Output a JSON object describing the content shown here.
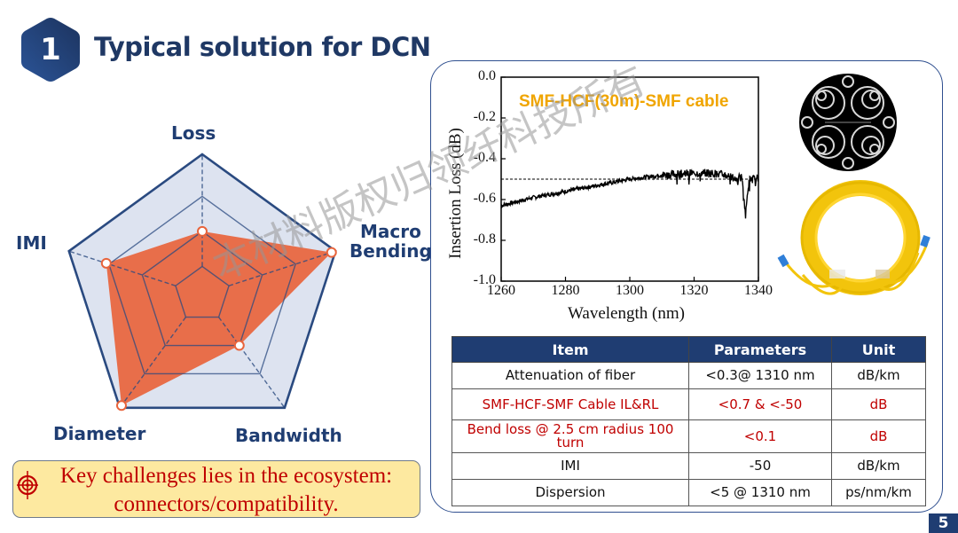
{
  "header": {
    "section_number": "1",
    "title": "Typical solution for DCN"
  },
  "radar": {
    "axes": [
      "Loss",
      "Macro Bending",
      "Bandwidth",
      "Diameter",
      "IMI"
    ],
    "labels": {
      "loss": "Loss",
      "macro_line1": "Macro",
      "macro_line2": "Bending",
      "bandwidth": "Bandwidth",
      "diameter": "Diameter",
      "imi": "IMI"
    },
    "ring_levels": [
      0.2,
      0.45,
      0.7,
      1.0
    ],
    "values": [
      0.45,
      0.97,
      0.45,
      0.98,
      0.72
    ],
    "colors": {
      "fill": "#e8643c",
      "grid": "#2a4a80",
      "background": "#dde3f0"
    }
  },
  "callout": {
    "icon": "target-icon",
    "line1": "Key challenges lies in the ecosystem:",
    "line2": "connectors/compatibility."
  },
  "chart_data": {
    "type": "line",
    "title": "SMF-HCF(30m)-SMF cable",
    "xlabel": "Wavelength (nm)",
    "ylabel": "Insertion Loss (dB)",
    "xlim": [
      1260,
      1340
    ],
    "ylim": [
      -1.0,
      0.0
    ],
    "x_ticks": [
      "1260",
      "1280",
      "1300",
      "1320",
      "1340"
    ],
    "y_ticks": [
      "0.0",
      "-0.2",
      "-0.4",
      "-0.6",
      "-0.8",
      "-1.0"
    ],
    "reference_line": -0.5,
    "series": [
      {
        "name": "Insertion Loss",
        "x": [
          1260,
          1265,
          1270,
          1275,
          1280,
          1285,
          1290,
          1295,
          1300,
          1305,
          1310,
          1315,
          1320,
          1325,
          1330,
          1333,
          1335,
          1336,
          1337,
          1340
        ],
        "y": [
          -0.63,
          -0.61,
          -0.59,
          -0.575,
          -0.56,
          -0.545,
          -0.53,
          -0.515,
          -0.5,
          -0.49,
          -0.48,
          -0.475,
          -0.47,
          -0.47,
          -0.48,
          -0.5,
          -0.49,
          -0.68,
          -0.5,
          -0.5
        ]
      }
    ],
    "grid": false,
    "legend": "none"
  },
  "images": {
    "fiber_cross_section": "hollow-core-fiber-cross-section",
    "cable": "yellow-fiber-cable-coil"
  },
  "table": {
    "headers": [
      "Item",
      "Parameters",
      "Unit"
    ],
    "rows": [
      {
        "item": "Attenuation of fiber",
        "param": "<0.3@ 1310 nm",
        "unit": "dB/km",
        "highlight": false
      },
      {
        "item": "SMF-HCF-SMF Cable IL&RL",
        "param": "<0.7 & <-50",
        "unit": "dB",
        "highlight": true
      },
      {
        "item": "Bend loss @ 2.5 cm radius 100 turn",
        "param": "<0.1",
        "unit": "dB",
        "highlight": true
      },
      {
        "item": "IMI",
        "param": "-50",
        "unit": "dB/km",
        "highlight": false
      },
      {
        "item": "Dispersion",
        "param": "<5 @ 1310 nm",
        "unit": "ps/nm/km",
        "highlight": false
      }
    ]
  },
  "watermark": "本材料版权归领纤科技所有",
  "page_number": "5"
}
